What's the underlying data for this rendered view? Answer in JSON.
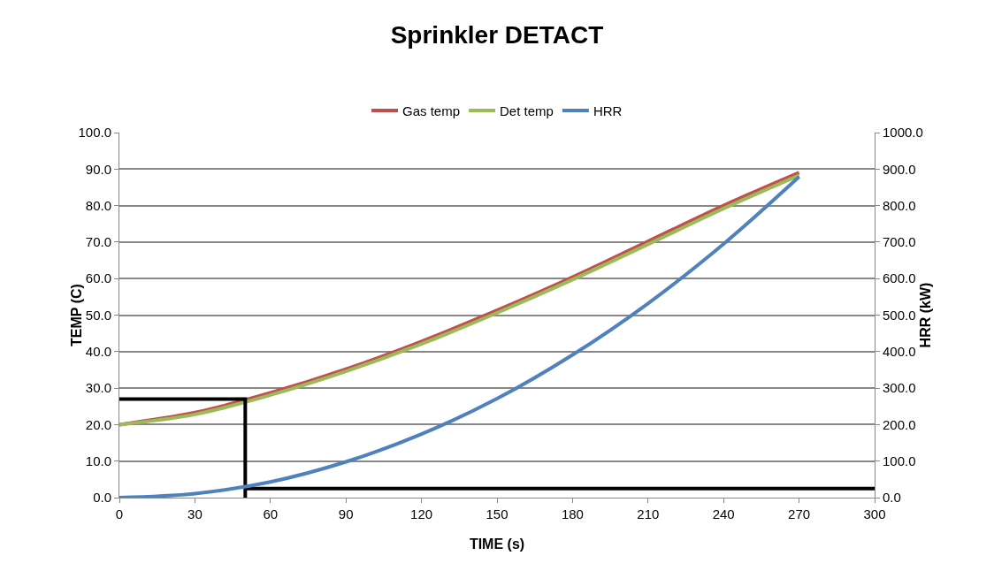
{
  "chart_data": {
    "type": "line",
    "title": "Sprinkler DETACT",
    "xlabel": "TIME (s)",
    "ylabel": "TEMP (C)",
    "y2label": "HRR (kW)",
    "x": [
      0,
      30,
      60,
      90,
      120,
      150,
      180,
      210,
      240,
      270
    ],
    "series": [
      {
        "name": "Gas temp",
        "color": "#c0504d",
        "values": [
          20,
          23.3,
          28.7,
          35.2,
          42.8,
          51.3,
          60.4,
          70.2,
          80,
          89
        ]
      },
      {
        "name": "Det temp",
        "color": "#9bbb59",
        "values": [
          20,
          22.8,
          28.1,
          34.6,
          42.1,
          50.6,
          59.7,
          69.4,
          79.2,
          88.3
        ]
      },
      {
        "name": "HRR",
        "color": "#4f81bd",
        "axis": "y2",
        "values": [
          0,
          11,
          43,
          98,
          174,
          271,
          391,
          532,
          695,
          879
        ]
      },
      {
        "color": "#000000",
        "x": [
          0,
          50,
          50
        ],
        "values": [
          27,
          27,
          0
        ]
      },
      {
        "color": "#000000",
        "x": [
          50,
          300
        ],
        "values": [
          2.5,
          2.5
        ]
      }
    ],
    "xlim": [
      0,
      300
    ],
    "xticks": [
      0,
      30,
      60,
      90,
      120,
      150,
      180,
      210,
      240,
      270,
      300
    ],
    "ylim": [
      0,
      100
    ],
    "yticks": [
      {
        "value": 0,
        "label": "0.0"
      },
      {
        "value": 10,
        "label": "10.0"
      },
      {
        "value": 20,
        "label": "20.0"
      },
      {
        "value": 30,
        "label": "30.0"
      },
      {
        "value": 40,
        "label": "40.0"
      },
      {
        "value": 50,
        "label": "50.0"
      },
      {
        "value": 60,
        "label": "60.0"
      },
      {
        "value": 70,
        "label": "70.0"
      },
      {
        "value": 80,
        "label": "80.0"
      },
      {
        "value": 90,
        "label": "90.0"
      },
      {
        "value": 100,
        "label": "100.0"
      }
    ],
    "y2lim": [
      0,
      1000
    ],
    "y2ticks": [
      {
        "value": 0,
        "label": "0.0"
      },
      {
        "value": 100,
        "label": "100.0"
      },
      {
        "value": 200,
        "label": "200.0"
      },
      {
        "value": 300,
        "label": "300.0"
      },
      {
        "value": 400,
        "label": "400.0"
      },
      {
        "value": 500,
        "label": "500.0"
      },
      {
        "value": 600,
        "label": "600.0"
      },
      {
        "value": 700,
        "label": "700.0"
      },
      {
        "value": 800,
        "label": "800.0"
      },
      {
        "value": 900,
        "label": "900.0"
      },
      {
        "value": 1000,
        "label": "1000.0"
      }
    ],
    "grid": "y",
    "legend": "top",
    "marker": "none",
    "line_style": "solid"
  }
}
